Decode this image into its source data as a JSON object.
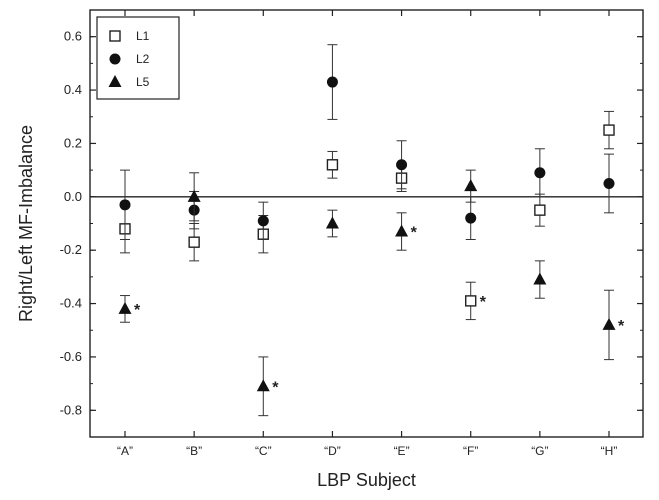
{
  "chart_data": {
    "type": "scatter",
    "title": "",
    "xlabel": "LBP Subject",
    "ylabel": "Right/Left MF-Imbalance",
    "ylim": [
      -0.9,
      0.7
    ],
    "yticks": [
      -0.8,
      -0.6,
      -0.4,
      -0.2,
      0.0,
      0.2,
      0.4,
      0.6
    ],
    "ytick_labels": [
      "-0.8",
      "-0.6",
      "-0.4",
      "-0.2",
      "0.0",
      "0.2",
      "0.4",
      "0.6"
    ],
    "categories": [
      "“A”",
      "“B”",
      "“C”",
      "“D”",
      "“E”",
      "“F”",
      "“G”",
      "“H”"
    ],
    "zero_line": true,
    "legend_position": "top-left",
    "series": [
      {
        "name": "L1",
        "marker": "square-open",
        "values": [
          -0.12,
          -0.17,
          -0.14,
          0.12,
          0.07,
          -0.39,
          -0.05,
          0.25
        ],
        "err": [
          0.09,
          0.07,
          0.07,
          0.05,
          0.05,
          0.07,
          0.06,
          0.07
        ],
        "significant": [
          false,
          false,
          false,
          false,
          false,
          true,
          false,
          false
        ]
      },
      {
        "name": "L2",
        "marker": "circle-filled",
        "values": [
          -0.03,
          -0.05,
          -0.09,
          0.43,
          0.12,
          -0.08,
          0.09,
          0.05
        ],
        "err": [
          0.13,
          0.07,
          0.07,
          0.14,
          0.09,
          0.08,
          0.09,
          0.11
        ],
        "significant": [
          false,
          false,
          false,
          false,
          false,
          false,
          false,
          false
        ]
      },
      {
        "name": "L5",
        "marker": "triangle-filled",
        "values": [
          -0.42,
          0.0,
          -0.71,
          -0.1,
          -0.13,
          0.04,
          -0.31,
          -0.48
        ],
        "err": [
          0.05,
          0.09,
          0.11,
          0.05,
          0.07,
          0.06,
          0.07,
          0.13
        ],
        "significant": [
          true,
          false,
          true,
          false,
          true,
          false,
          false,
          true
        ]
      }
    ],
    "significance_marker": "*"
  }
}
